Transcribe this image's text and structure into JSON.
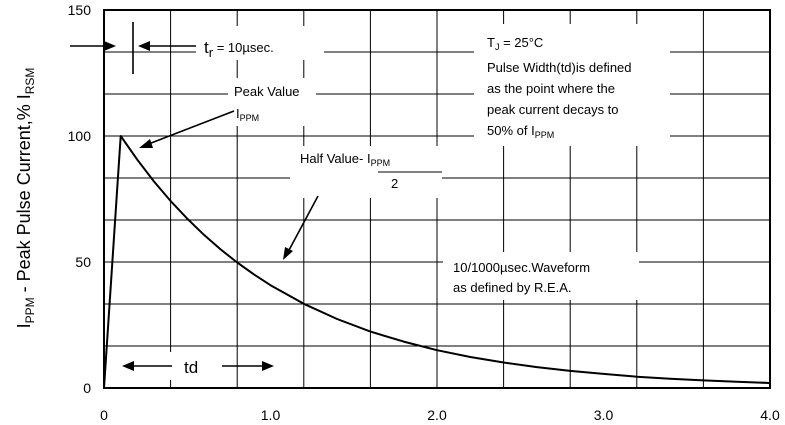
{
  "chart_data": {
    "type": "line",
    "title": "",
    "xlabel": "",
    "ylabel_main": "I",
    "ylabel_sub1": "PPM",
    "ylabel_mid": " - Peak Pulse Current,% I",
    "ylabel_sub2": "RSM",
    "xlim": [
      0,
      4.0
    ],
    "ylim": [
      0,
      150
    ],
    "x_ticks": [
      0,
      1.0,
      2.0,
      3.0,
      4.0
    ],
    "x_tick_labels": [
      "0",
      "1.0",
      "2.0",
      "3.0",
      "4.0"
    ],
    "y_ticks": [
      0,
      50,
      100,
      150
    ],
    "y_tick_labels": [
      "0",
      "50",
      "100",
      "150"
    ],
    "grid": true,
    "series": [
      {
        "color": "#000000",
        "x": [
          0,
          0.1,
          0.2,
          0.3,
          0.4,
          0.5,
          0.6,
          0.7,
          0.8,
          0.9,
          1.0,
          1.2,
          1.4,
          1.6,
          1.8,
          2.0,
          2.2,
          2.4,
          2.6,
          2.8,
          3.0,
          3.2,
          3.4,
          3.6,
          3.8,
          4.0
        ],
        "y": [
          0,
          100,
          90.6,
          82.0,
          74.2,
          67.2,
          60.8,
          55.0,
          49.8,
          45.1,
          40.8,
          33.4,
          27.4,
          22.4,
          18.4,
          15.0,
          12.3,
          10.1,
          8.3,
          6.8,
          5.6,
          4.5,
          3.7,
          3.0,
          2.5,
          2.0
        ]
      }
    ]
  },
  "annotations": {
    "tr_main": "t",
    "tr_sub": "r",
    "tr_value": " = 10µsec.",
    "tj_main": "T",
    "tj_sub": "J",
    "tj_value": " = 25°C",
    "pw_line1": "Pulse Width(td)is defined",
    "pw_line2": "as the point where the",
    "pw_line3": "peak current decays to",
    "pw_line4_main": "50% of I",
    "pw_line4_sub": "PPM",
    "peak_line1": "Peak Value",
    "peak_line2_main": "I",
    "peak_line2_sub": "PPM",
    "half_main": "Half Value- I",
    "half_sub": "PPM",
    "half_denom": "2",
    "wave_line1": "10/1000µsec.Waveform",
    "wave_line2": "as defined by R.E.A.",
    "td_label": "td"
  }
}
